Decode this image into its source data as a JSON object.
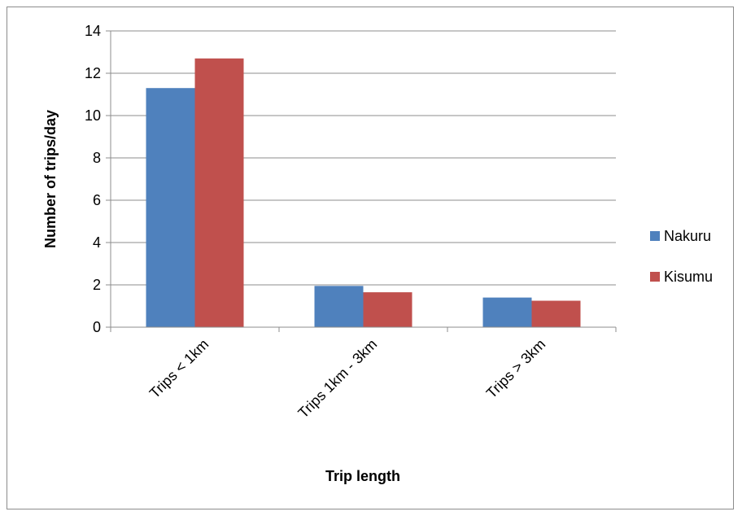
{
  "chart_data": {
    "type": "bar",
    "title": "",
    "xlabel": "Trip length",
    "ylabel": "Number of trips/day",
    "categories": [
      "Trips < 1km",
      "Trips 1km - 3km",
      "Trips > 3km"
    ],
    "series": [
      {
        "name": "Nakuru",
        "color": "#4F81BD",
        "values": [
          11.3,
          1.95,
          1.4
        ]
      },
      {
        "name": "Kisumu",
        "color": "#C0504D",
        "values": [
          12.7,
          1.65,
          1.25
        ]
      }
    ],
    "ylim": [
      0,
      14
    ],
    "yticks": [
      "0",
      "2",
      "4",
      "6",
      "8",
      "10",
      "12",
      "14"
    ],
    "grid": true,
    "legend_position": "right"
  }
}
